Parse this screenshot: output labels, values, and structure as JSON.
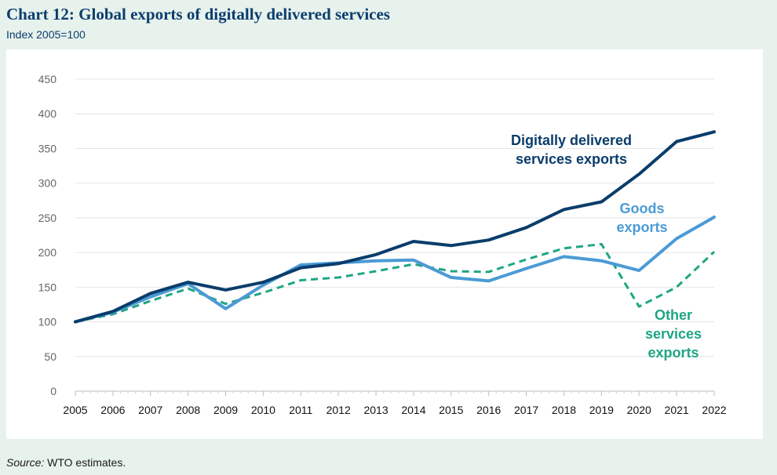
{
  "title": "Chart 12: Global exports of digitally delivered services",
  "subtitle": "Index 2005=100",
  "source": {
    "label": "Source:",
    "text": " WTO estimates."
  },
  "colors": {
    "digital": "#0a3d6b",
    "goods": "#4b9bd5",
    "other": "#1ea683",
    "axis_text": "#666666",
    "x_text": "#111111",
    "grid": "#e4e4e4",
    "background": "#e8f2ec"
  },
  "chart_data": {
    "type": "line",
    "title": "Chart 12: Global exports of digitally delivered services",
    "subtitle": "Index 2005=100",
    "xlabel": "",
    "ylabel": "",
    "ylim": [
      0,
      450
    ],
    "yticks": [
      0,
      50,
      100,
      150,
      200,
      250,
      300,
      350,
      400,
      450
    ],
    "grid": true,
    "legend": "inline annotations",
    "x": [
      "2005",
      "2006",
      "2007",
      "2008",
      "2009",
      "2010",
      "2011",
      "2012",
      "2013",
      "2014",
      "2015",
      "2016",
      "2017",
      "2018",
      "2019",
      "2020",
      "2021",
      "2022"
    ],
    "series": [
      {
        "name": "Digitally delivered services exports",
        "label_lines": [
          "Digitally delivered",
          "services exports"
        ],
        "color": "#0a3d6b",
        "style": "solid",
        "values": [
          100,
          115,
          141,
          157,
          146,
          157,
          178,
          184,
          197,
          216,
          210,
          218,
          236,
          262,
          273,
          313,
          360,
          374
        ]
      },
      {
        "name": "Goods exports",
        "label_lines": [
          "Goods",
          "exports"
        ],
        "color": "#4b9bd5",
        "style": "solid",
        "values": [
          100,
          114,
          136,
          155,
          119,
          153,
          182,
          185,
          188,
          189,
          164,
          159,
          177,
          194,
          188,
          174,
          220,
          251
        ]
      },
      {
        "name": "Other services exports",
        "label_lines": [
          "Other",
          "services",
          "exports"
        ],
        "color": "#1ea683",
        "style": "dashed",
        "values": [
          100,
          111,
          130,
          148,
          126,
          142,
          160,
          164,
          173,
          183,
          173,
          172,
          190,
          206,
          212,
          122,
          150,
          201
        ]
      }
    ]
  }
}
